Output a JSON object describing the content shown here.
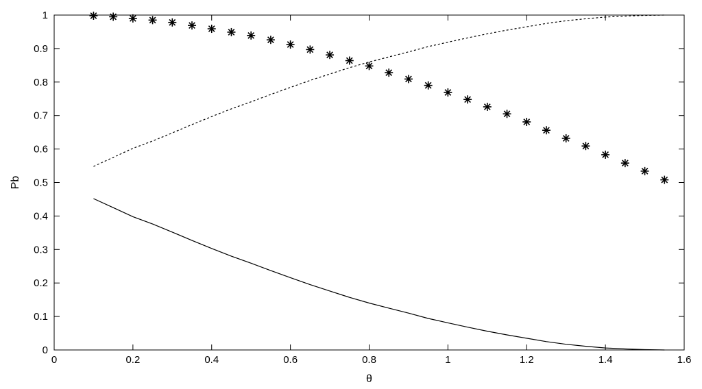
{
  "chart_data": {
    "type": "line",
    "xlabel": "θ",
    "ylabel": "Pb",
    "xlim": [
      0,
      1.6
    ],
    "ylim": [
      0,
      1
    ],
    "grid": false,
    "legend": "none",
    "x_ticks": [
      "0",
      "0.2",
      "0.4",
      "0.6",
      "0.8",
      "1",
      "1.2",
      "1.4",
      "1.6"
    ],
    "y_ticks": [
      "0",
      "0.1",
      "0.2",
      "0.3",
      "0.4",
      "0.5",
      "0.6",
      "0.7",
      "0.8",
      "0.9",
      "1"
    ],
    "x": [
      0.1,
      0.15,
      0.2,
      0.25,
      0.3,
      0.35,
      0.4,
      0.45,
      0.5,
      0.55,
      0.6,
      0.65,
      0.7,
      0.75,
      0.8,
      0.85,
      0.9,
      0.95,
      1.0,
      1.05,
      1.1,
      1.15,
      1.2,
      1.25,
      1.3,
      1.35,
      1.4,
      1.45,
      1.5,
      1.55
    ],
    "series": [
      {
        "style": "solid",
        "color": "#000000",
        "values": [
          0.452,
          0.425,
          0.398,
          0.376,
          0.352,
          0.327,
          0.303,
          0.28,
          0.259,
          0.237,
          0.216,
          0.195,
          0.176,
          0.157,
          0.14,
          0.125,
          0.11,
          0.094,
          0.081,
          0.068,
          0.056,
          0.045,
          0.035,
          0.025,
          0.017,
          0.011,
          0.006,
          0.003,
          0.001,
          0.0
        ]
      },
      {
        "style": "dashed",
        "color": "#000000",
        "values": [
          0.548,
          0.575,
          0.602,
          0.624,
          0.648,
          0.673,
          0.697,
          0.72,
          0.741,
          0.763,
          0.784,
          0.805,
          0.824,
          0.843,
          0.86,
          0.875,
          0.89,
          0.906,
          0.919,
          0.932,
          0.944,
          0.955,
          0.965,
          0.975,
          0.983,
          0.989,
          0.994,
          0.997,
          0.999,
          1.0
        ]
      },
      {
        "style": "marker-star",
        "color": "#000000",
        "values": [
          0.998,
          0.995,
          0.99,
          0.985,
          0.978,
          0.969,
          0.959,
          0.949,
          0.939,
          0.926,
          0.912,
          0.897,
          0.881,
          0.864,
          0.848,
          0.828,
          0.809,
          0.79,
          0.769,
          0.748,
          0.726,
          0.705,
          0.681,
          0.656,
          0.632,
          0.609,
          0.583,
          0.558,
          0.534,
          0.508
        ]
      }
    ]
  }
}
